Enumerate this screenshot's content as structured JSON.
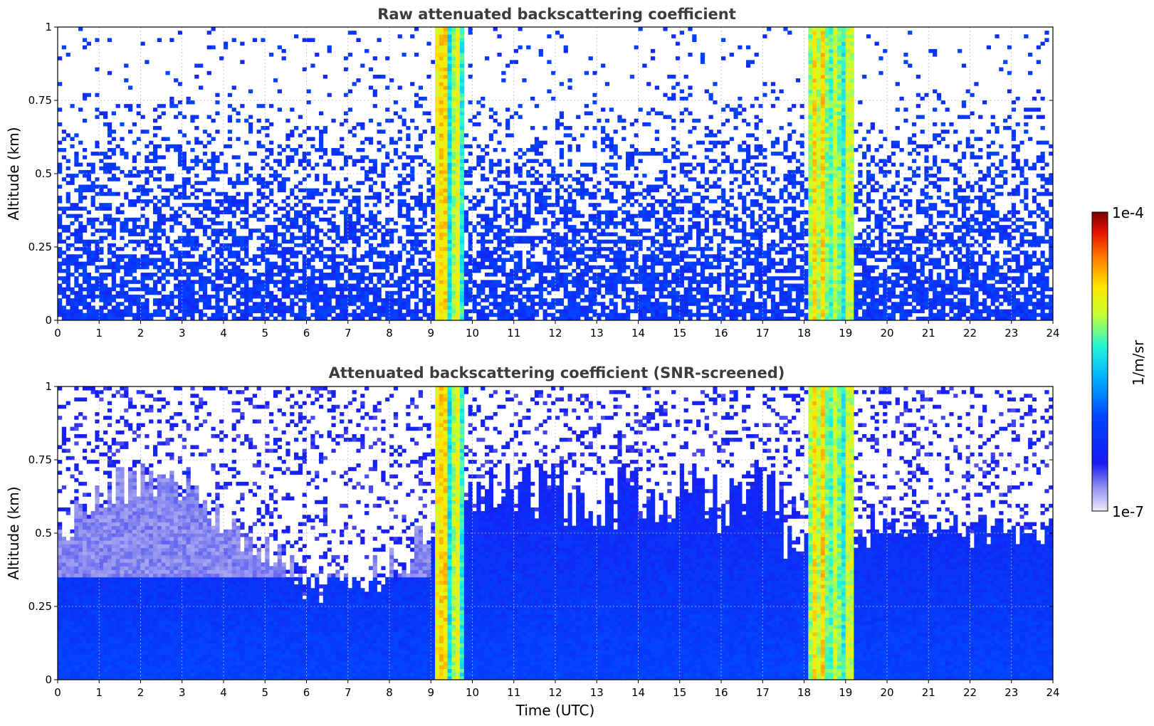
{
  "chart_data": [
    {
      "type": "heatmap",
      "title": "Raw attenuated backscattering coefficient",
      "xlabel": "",
      "ylabel": "Altitude (km)",
      "xlim": [
        0,
        24
      ],
      "ylim": [
        0,
        1
      ],
      "xticks": [
        "0",
        "1",
        "2",
        "3",
        "4",
        "5",
        "6",
        "7",
        "8",
        "9",
        "10",
        "11",
        "12",
        "13",
        "14",
        "15",
        "16",
        "17",
        "18",
        "19",
        "20",
        "21",
        "22",
        "23",
        "24"
      ],
      "yticks": [
        "0",
        "0.25",
        "0.5",
        "0.75",
        "1"
      ],
      "grid": true,
      "screened": false,
      "features": [
        {
          "x_range": [
            9.1,
            9.8
          ],
          "level": "high"
        },
        {
          "x_range": [
            18.1,
            19.2
          ],
          "level": "high"
        }
      ]
    },
    {
      "type": "heatmap",
      "title": "Attenuated backscattering coefficient (SNR-screened)",
      "xlabel": "Time (UTC)",
      "ylabel": "Altitude (km)",
      "xlim": [
        0,
        24
      ],
      "ylim": [
        0,
        1
      ],
      "xticks": [
        "0",
        "1",
        "2",
        "3",
        "4",
        "5",
        "6",
        "7",
        "8",
        "9",
        "10",
        "11",
        "12",
        "13",
        "14",
        "15",
        "16",
        "17",
        "18",
        "19",
        "20",
        "21",
        "22",
        "23",
        "24"
      ],
      "yticks": [
        "0",
        "0.25",
        "0.5",
        "0.75",
        "1"
      ],
      "grid": true,
      "screened": true,
      "features": [
        {
          "x_range": [
            9.1,
            9.8
          ],
          "level": "high"
        },
        {
          "x_range": [
            18.1,
            19.2
          ],
          "level": "high"
        }
      ]
    }
  ],
  "colorbar": {
    "label": "1/m/sr",
    "max_label": "1e-4",
    "min_label": "1e-7",
    "colormap": "jet"
  }
}
